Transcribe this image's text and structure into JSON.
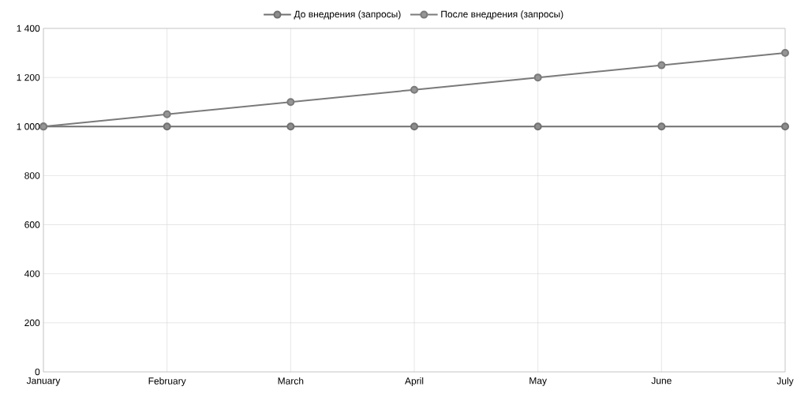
{
  "chart_data": {
    "type": "line",
    "categories": [
      "January",
      "February",
      "March",
      "April",
      "May",
      "June",
      "July"
    ],
    "series": [
      {
        "name": "До внедрения (запросы)",
        "color": "#707070",
        "values": [
          1000,
          1000,
          1000,
          1000,
          1000,
          1000,
          1000
        ]
      },
      {
        "name": "После внедрения (запросы)",
        "color": "#7a7a7a",
        "values": [
          1000,
          1050,
          1100,
          1150,
          1200,
          1250,
          1300
        ]
      }
    ],
    "ylim": [
      0,
      1400
    ],
    "yticks": [
      0,
      200,
      400,
      600,
      800,
      {
        "value": 1000,
        "label": "1 000"
      },
      {
        "value": 1200,
        "label": "1 200"
      },
      {
        "value": 1400,
        "label": "1 400"
      }
    ],
    "grid": true,
    "legend": "top",
    "marker": "circle",
    "line_style": "solid"
  }
}
